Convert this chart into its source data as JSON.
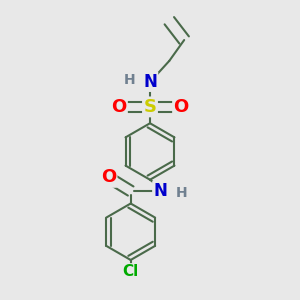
{
  "bg_color": "#e8e8e8",
  "bond_color": "#4a6a4a",
  "bond_width": 1.5,
  "atom_colors": {
    "S": "#cccc00",
    "O": "#ff0000",
    "N": "#0000cc",
    "H": "#708090",
    "Cl": "#00aa00",
    "C": "#4a6a4a"
  }
}
